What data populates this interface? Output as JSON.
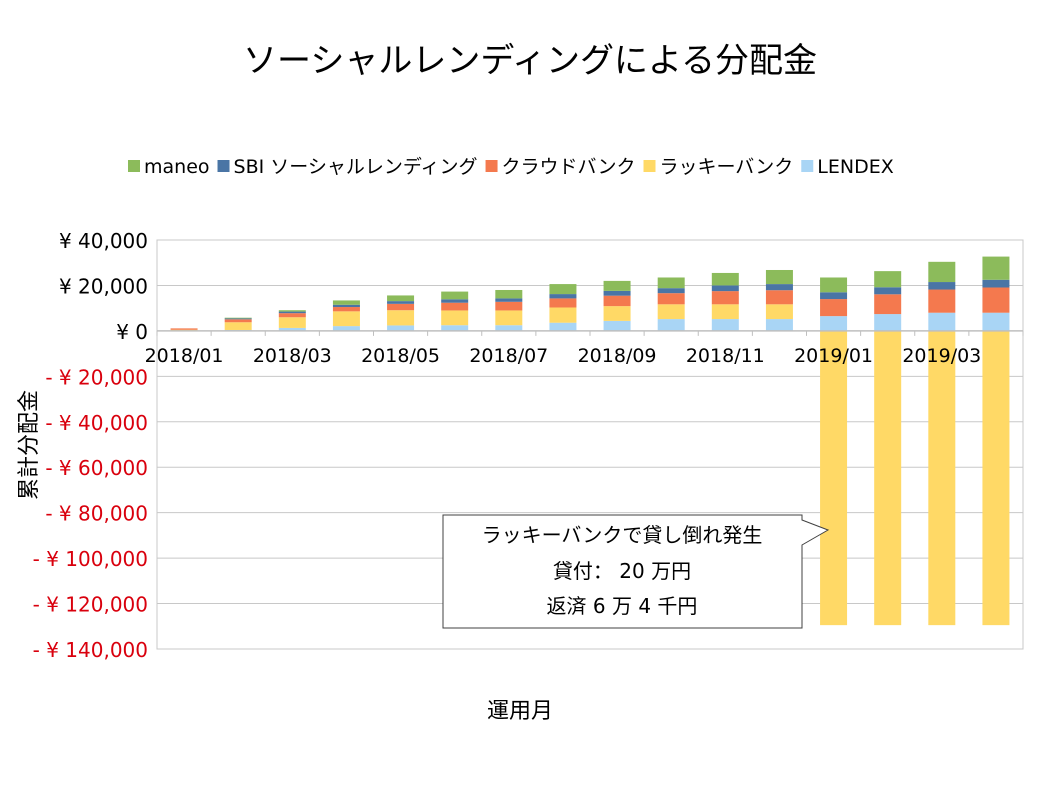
{
  "chart_data": {
    "type": "bar",
    "stacked": true,
    "title": "ソーシャルレンディングによる分配金",
    "xlabel": "運用月",
    "ylabel": "累計分配金",
    "ylim": [
      -140000,
      40000
    ],
    "grid": true,
    "legend_position": "top",
    "categories": [
      "2018/01",
      "2018/02",
      "2018/03",
      "2018/04",
      "2018/05",
      "2018/06",
      "2018/07",
      "2018/08",
      "2018/09",
      "2018/10",
      "2018/11",
      "2018/12",
      "2019/01",
      "2019/02",
      "2019/03",
      "2019/04"
    ],
    "x_tick_labels": [
      "2018/01",
      "2018/03",
      "2018/05",
      "2018/07",
      "2018/09",
      "2018/11",
      "2019/01",
      "2019/03"
    ],
    "y_tick_labels": [
      "¥ 40,000",
      "¥ 20,000",
      "¥ 0",
      "- ¥ 20,000",
      "- ¥ 40,000",
      "- ¥ 60,000",
      "- ¥ 80,000",
      "- ¥ 100,000",
      "- ¥ 120,000",
      "- ¥ 140,000"
    ],
    "y_ticks": [
      40000,
      20000,
      0,
      -20000,
      -40000,
      -60000,
      -80000,
      -100000,
      -120000,
      -140000
    ],
    "negative_label_color": "#D9000D",
    "series": [
      {
        "name": "LENDEX",
        "color": "#A9D5F5",
        "values": [
          0,
          400,
          1300,
          2100,
          2400,
          2500,
          2500,
          3600,
          4400,
          5200,
          5200,
          5200,
          6500,
          7400,
          8000,
          8000
        ]
      },
      {
        "name": "ラッキーバンク",
        "color": "#FFD966",
        "values": [
          500,
          3400,
          4700,
          6500,
          6700,
          6500,
          6500,
          6700,
          6500,
          6500,
          6500,
          6500,
          -129500,
          -129500,
          -129500,
          -129500
        ]
      },
      {
        "name": "クラウドバンク",
        "color": "#F4794E",
        "values": [
          600,
          1300,
          1800,
          1900,
          2800,
          3400,
          3800,
          4000,
          4600,
          4900,
          5800,
          6200,
          7500,
          8700,
          10200,
          11100
        ]
      },
      {
        "name": "SBI ソーシャルレンディング",
        "color": "#4A75A5",
        "values": [
          0,
          400,
          700,
          1000,
          1200,
          1500,
          1500,
          1900,
          2100,
          2200,
          2500,
          2700,
          3000,
          3100,
          3300,
          3400
        ]
      },
      {
        "name": "maneo",
        "color": "#8CBB5B",
        "values": [
          0,
          300,
          600,
          1900,
          2500,
          3400,
          3700,
          4400,
          4400,
          4700,
          5500,
          6200,
          6500,
          7100,
          8900,
          10200
        ]
      }
    ],
    "legend_order": [
      "maneo",
      "SBI ソーシャルレンディング",
      "クラウドバンク",
      "ラッキーバンク",
      "LENDEX"
    ],
    "annotation": {
      "lines": [
        "ラッキーバンクで貸し倒れ発生",
        "貸付： 20 万円",
        "返済 6 万 4 千円"
      ]
    }
  }
}
